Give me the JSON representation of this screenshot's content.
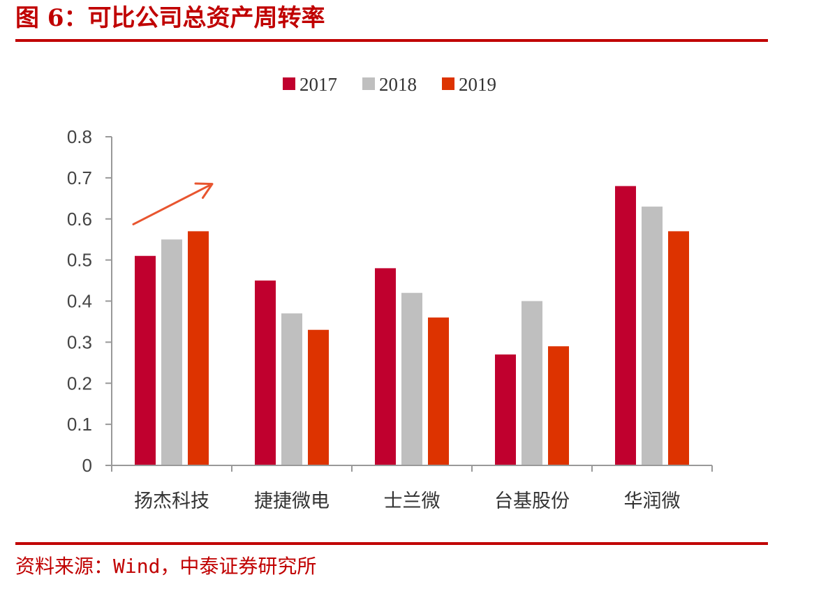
{
  "title": "图 6：可比公司总资产周转率",
  "source": "资料来源：Wind，中泰证券研究所",
  "chart_data": {
    "type": "bar",
    "categories": [
      "扬杰科技",
      "捷捷微电",
      "士兰微",
      "台基股份",
      "华润微"
    ],
    "series": [
      {
        "name": "2017",
        "color": "#c0002e",
        "values": [
          0.51,
          0.45,
          0.48,
          0.27,
          0.68
        ]
      },
      {
        "name": "2018",
        "color": "#bfbfbf",
        "values": [
          0.55,
          0.37,
          0.42,
          0.4,
          0.63
        ]
      },
      {
        "name": "2019",
        "color": "#dd3300",
        "values": [
          0.57,
          0.33,
          0.36,
          0.29,
          0.57
        ]
      }
    ],
    "yticks": [
      "0",
      "0.1",
      "0.2",
      "0.3",
      "0.4",
      "0.5",
      "0.6",
      "0.7",
      "0.8"
    ],
    "ylim": [
      0,
      0.8
    ],
    "legend_position": "top-center",
    "grid": false,
    "annotations": [
      {
        "type": "arrow",
        "color": "#e8552f",
        "category": "扬杰科技",
        "from_value": 0.57,
        "to_value": 0.68
      }
    ]
  }
}
